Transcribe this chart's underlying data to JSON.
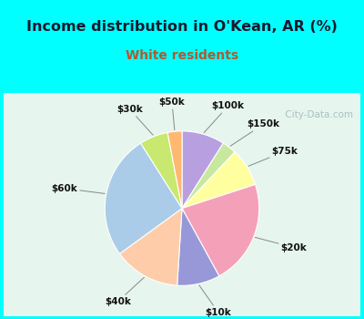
{
  "title": "Income distribution in O'Kean, AR (%)",
  "subtitle": "White residents",
  "title_color": "#1a1a2e",
  "subtitle_color": "#b05a2f",
  "bg_color_outer": "#00ffff",
  "bg_color_inner_top": "#f0fafa",
  "bg_color_inner_bottom": "#d8f0e0",
  "labels": [
    "$100k",
    "$150k",
    "$75k",
    "$20k",
    "$10k",
    "$40k",
    "$60k",
    "$30k",
    "$50k"
  ],
  "sizes": [
    9,
    3,
    8,
    22,
    9,
    14,
    26,
    6,
    3
  ],
  "colors": [
    "#b8a0e0",
    "#c8e8a0",
    "#ffffa0",
    "#f4a0b8",
    "#9898d8",
    "#ffccaa",
    "#aacce8",
    "#c8e870",
    "#ffb870"
  ],
  "watermark": " City-Data.com",
  "startangle": 90
}
